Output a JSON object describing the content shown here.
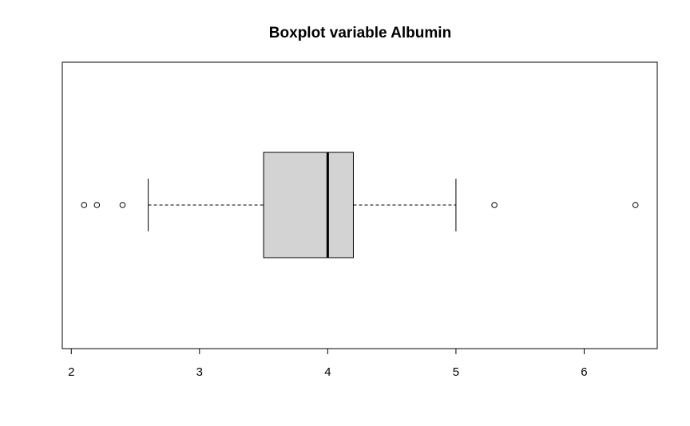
{
  "chart_data": {
    "type": "boxplot",
    "orientation": "horizontal",
    "title": "Boxplot variable Albumin",
    "xlabel": "",
    "ylabel": "",
    "xlim": [
      1.93,
      6.57
    ],
    "x_ticks": [
      2,
      3,
      4,
      5,
      6
    ],
    "x_tick_labels": [
      "2",
      "3",
      "4",
      "5",
      "6"
    ],
    "grid": false,
    "box_fill": "#d3d3d3",
    "line_color": "#000000",
    "stats": {
      "whisker_low": 2.6,
      "q1": 3.5,
      "median": 4.0,
      "q3": 4.2,
      "whisker_high": 5.0
    },
    "outliers": [
      2.1,
      2.2,
      2.4,
      5.3,
      6.4
    ]
  }
}
